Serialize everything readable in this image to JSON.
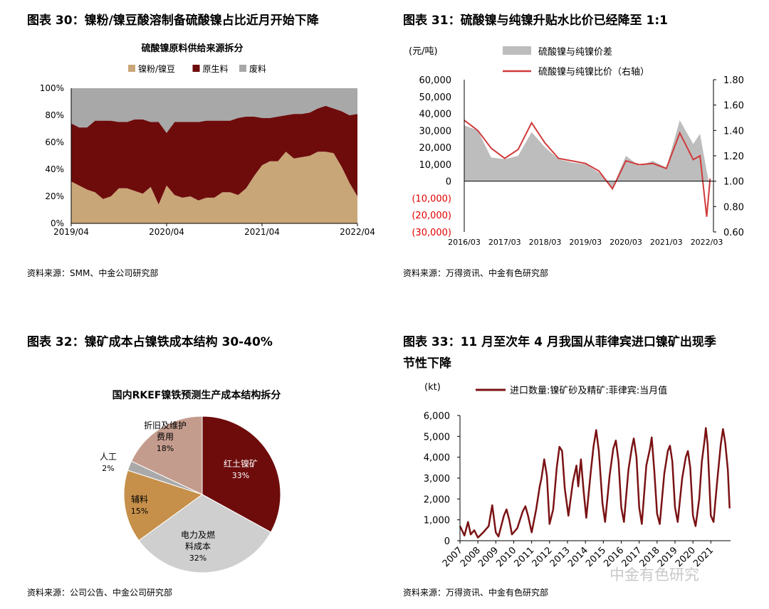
{
  "panel30": {
    "title": "图表 30：镍粉/镍豆酸溶制备硫酸镍占比近月开始下降",
    "source": "资料来源：SMM、中金公司研究部"
  },
  "panel31": {
    "title": "图表 31：硫酸镍与纯镍升贴水比价已经降至 1:1",
    "source": "资料来源：万得资讯、中金有色研究部"
  },
  "panel32": {
    "title": "图表 32：镍矿成本占镍铁成本结构 30-40%",
    "source": "资料来源：公司公告、中金公司研究部"
  },
  "panel33": {
    "title_line1": "图表 33：11 月至次年 4 月我国从菲律宾进口镍矿出现季",
    "title_line2": "节性下降",
    "source": "资料来源：万得资讯、中金有色研究部"
  },
  "watermark": "中金有色研究",
  "chart_data": [
    {
      "type": "area",
      "title": "硫酸镍原料供给来源拆分",
      "ylim": [
        0,
        100
      ],
      "yticks": [
        "0%",
        "20%",
        "40%",
        "60%",
        "80%",
        "100%"
      ],
      "xticks": [
        "2019/04",
        "2020/04",
        "2021/04",
        "2022/04"
      ],
      "x_range": [
        "2019/04",
        "2022/04"
      ],
      "x": [
        "2019/04",
        "2019/05",
        "2019/06",
        "2019/07",
        "2019/08",
        "2019/09",
        "2019/10",
        "2019/11",
        "2019/12",
        "2020/01",
        "2020/02",
        "2020/03",
        "2020/04",
        "2020/05",
        "2020/06",
        "2020/07",
        "2020/08",
        "2020/09",
        "2020/10",
        "2020/11",
        "2020/12",
        "2021/01",
        "2021/02",
        "2021/03",
        "2021/04",
        "2021/05",
        "2021/06",
        "2021/07",
        "2021/08",
        "2021/09",
        "2021/10",
        "2021/11",
        "2021/12",
        "2022/01",
        "2022/02",
        "2022/03",
        "2022/04"
      ],
      "stacked": true,
      "grid": false,
      "legend": "top",
      "series": [
        {
          "name": "镍粉/镍豆",
          "color": "#c9a678",
          "values": [
            31,
            28,
            25,
            23,
            18,
            20,
            26,
            26,
            24,
            22,
            27,
            14,
            28,
            21,
            19,
            20,
            17,
            19,
            19,
            23,
            23,
            21,
            26,
            35,
            43,
            46,
            46,
            53,
            48,
            49,
            50,
            53,
            53,
            52,
            42,
            30,
            20
          ]
        },
        {
          "name": "原生料",
          "color": "#6e0c0c",
          "values": [
            43,
            43,
            46,
            53,
            58,
            56,
            49,
            49,
            53,
            55,
            48,
            61,
            39,
            54,
            56,
            55,
            58,
            57,
            57,
            53,
            53,
            57,
            53,
            44,
            35,
            32,
            33,
            27,
            33,
            32,
            32,
            32,
            34,
            33,
            41,
            50,
            61
          ]
        },
        {
          "name": "废料",
          "color": "#a8a8a8",
          "values": [
            26,
            29,
            29,
            24,
            24,
            24,
            25,
            25,
            23,
            23,
            25,
            25,
            33,
            25,
            25,
            25,
            25,
            24,
            24,
            24,
            24,
            22,
            21,
            21,
            22,
            22,
            21,
            20,
            19,
            19,
            18,
            15,
            13,
            15,
            17,
            20,
            19
          ]
        }
      ]
    },
    {
      "type": "line",
      "ylabel": "(元/吨)",
      "ylim": [
        -30000,
        60000
      ],
      "yticks": [
        "(30,000)",
        "(20,000)",
        "(10,000)",
        "0",
        "10,000",
        "20,000",
        "30,000",
        "40,000",
        "50,000",
        "60,000"
      ],
      "y2lim": [
        0.6,
        1.8
      ],
      "y2ticks": [
        "0.60",
        "0.80",
        "1.00",
        "1.20",
        "1.40",
        "1.60",
        "1.80"
      ],
      "xticks": [
        "2016/03",
        "2017/03",
        "2018/03",
        "2019/03",
        "2020/03",
        "2021/03",
        "2022/03"
      ],
      "x_range": [
        "2016/03",
        "2022/05"
      ],
      "legend": "top",
      "x": [
        "2016/03",
        "2016/07",
        "2016/11",
        "2017/03",
        "2017/07",
        "2017/11",
        "2018/03",
        "2018/07",
        "2018/11",
        "2019/03",
        "2019/07",
        "2019/11",
        "2020/03",
        "2020/07",
        "2020/11",
        "2021/03",
        "2021/07",
        "2021/11",
        "2022/01",
        "2022/03",
        "2022/04"
      ],
      "series": [
        {
          "name": "硫酸镍与纯镍价差",
          "axis": "left",
          "kind": "area",
          "color": "#bdbdbd",
          "values": [
            33000,
            30000,
            14000,
            13000,
            15000,
            29000,
            20000,
            13000,
            11000,
            10000,
            5000,
            -4000,
            15000,
            9000,
            12000,
            8000,
            36000,
            22000,
            28000,
            6000,
            -4000
          ]
        },
        {
          "name": "硫酸镍与纯镍比价（右轴）",
          "axis": "right",
          "kind": "line",
          "color": "#d03a3a",
          "values": [
            1.48,
            1.4,
            1.26,
            1.18,
            1.25,
            1.46,
            1.3,
            1.18,
            1.16,
            1.14,
            1.08,
            0.94,
            1.16,
            1.13,
            1.14,
            1.1,
            1.38,
            1.17,
            1.2,
            0.72,
            1.02
          ]
        }
      ]
    },
    {
      "type": "pie",
      "title": "国内RKEF镍铁预测生产成本结构拆分",
      "slices": [
        {
          "label": "红土镍矿",
          "value": 33,
          "text": "33%",
          "color": "#6e0c0c"
        },
        {
          "label": "电力及燃料成本",
          "value": 32,
          "text": "32%",
          "color": "#cfcfcf"
        },
        {
          "label": "辅料",
          "value": 15,
          "text": "15%",
          "color": "#c6904a"
        },
        {
          "label": "人工",
          "value": 2,
          "text": "2%",
          "color": "#a9a9a9"
        },
        {
          "label": "折旧及维护费用",
          "value": 18,
          "text": "18%",
          "color": "#c49c8e"
        }
      ]
    },
    {
      "type": "line",
      "ylabel": "(kt)",
      "ylim": [
        0,
        6000
      ],
      "yticks": [
        "0",
        "1,000",
        "2,000",
        "3,000",
        "4,000",
        "5,000",
        "6,000"
      ],
      "xticks": [
        "2007",
        "2008",
        "2009",
        "2010",
        "2011",
        "2012",
        "2013",
        "2014",
        "2015",
        "2016",
        "2017",
        "2018",
        "2019",
        "2020",
        "2021"
      ],
      "legend": "top",
      "series": [
        {
          "name": "进口数量:镍矿砂及精矿:菲律宾:当月值",
          "color": "#7a1214",
          "points": [
            [
              2007.0,
              700
            ],
            [
              2007.25,
              250
            ],
            [
              2007.45,
              900
            ],
            [
              2007.6,
              300
            ],
            [
              2007.8,
              500
            ],
            [
              2008.0,
              150
            ],
            [
              2008.3,
              400
            ],
            [
              2008.6,
              700
            ],
            [
              2008.8,
              1700
            ],
            [
              2009.0,
              400
            ],
            [
              2009.15,
              200
            ],
            [
              2009.45,
              1200
            ],
            [
              2009.6,
              1500
            ],
            [
              2009.75,
              1000
            ],
            [
              2009.9,
              300
            ],
            [
              2010.2,
              600
            ],
            [
              2010.5,
              1400
            ],
            [
              2010.65,
              1650
            ],
            [
              2010.8,
              1200
            ],
            [
              2011.0,
              400
            ],
            [
              2011.25,
              1500
            ],
            [
              2011.45,
              2600
            ],
            [
              2011.55,
              3000
            ],
            [
              2011.7,
              3900
            ],
            [
              2011.85,
              3100
            ],
            [
              2012.0,
              800
            ],
            [
              2012.2,
              1500
            ],
            [
              2012.4,
              3500
            ],
            [
              2012.55,
              4500
            ],
            [
              2012.7,
              4300
            ],
            [
              2012.85,
              2500
            ],
            [
              2013.05,
              1200
            ],
            [
              2013.3,
              2800
            ],
            [
              2013.5,
              3600
            ],
            [
              2013.6,
              2600
            ],
            [
              2013.75,
              3900
            ],
            [
              2013.9,
              2400
            ],
            [
              2014.05,
              1100
            ],
            [
              2014.3,
              3300
            ],
            [
              2014.45,
              4500
            ],
            [
              2014.6,
              5300
            ],
            [
              2014.75,
              4300
            ],
            [
              2014.95,
              1800
            ],
            [
              2015.1,
              900
            ],
            [
              2015.35,
              3100
            ],
            [
              2015.55,
              4400
            ],
            [
              2015.7,
              4800
            ],
            [
              2015.85,
              3800
            ],
            [
              2016.0,
              1600
            ],
            [
              2016.15,
              900
            ],
            [
              2016.4,
              3400
            ],
            [
              2016.6,
              4500
            ],
            [
              2016.7,
              4900
            ],
            [
              2016.85,
              4000
            ],
            [
              2017.0,
              1600
            ],
            [
              2017.15,
              800
            ],
            [
              2017.4,
              3600
            ],
            [
              2017.6,
              4400
            ],
            [
              2017.7,
              4950
            ],
            [
              2017.85,
              3300
            ],
            [
              2018.0,
              1300
            ],
            [
              2018.15,
              800
            ],
            [
              2018.4,
              3200
            ],
            [
              2018.6,
              4300
            ],
            [
              2018.72,
              4550
            ],
            [
              2018.85,
              3800
            ],
            [
              2019.0,
              1600
            ],
            [
              2019.15,
              900
            ],
            [
              2019.4,
              3000
            ],
            [
              2019.6,
              4000
            ],
            [
              2019.72,
              4300
            ],
            [
              2019.85,
              3500
            ],
            [
              2020.0,
              1200
            ],
            [
              2020.15,
              700
            ],
            [
              2020.35,
              2000
            ],
            [
              2020.5,
              3800
            ],
            [
              2020.65,
              4800
            ],
            [
              2020.72,
              5400
            ],
            [
              2020.82,
              4600
            ],
            [
              2021.0,
              1200
            ],
            [
              2021.15,
              900
            ],
            [
              2021.35,
              2800
            ],
            [
              2021.55,
              4600
            ],
            [
              2021.68,
              5350
            ],
            [
              2021.8,
              4700
            ],
            [
              2021.95,
              3400
            ],
            [
              2022.05,
              1550
            ]
          ]
        }
      ]
    }
  ]
}
